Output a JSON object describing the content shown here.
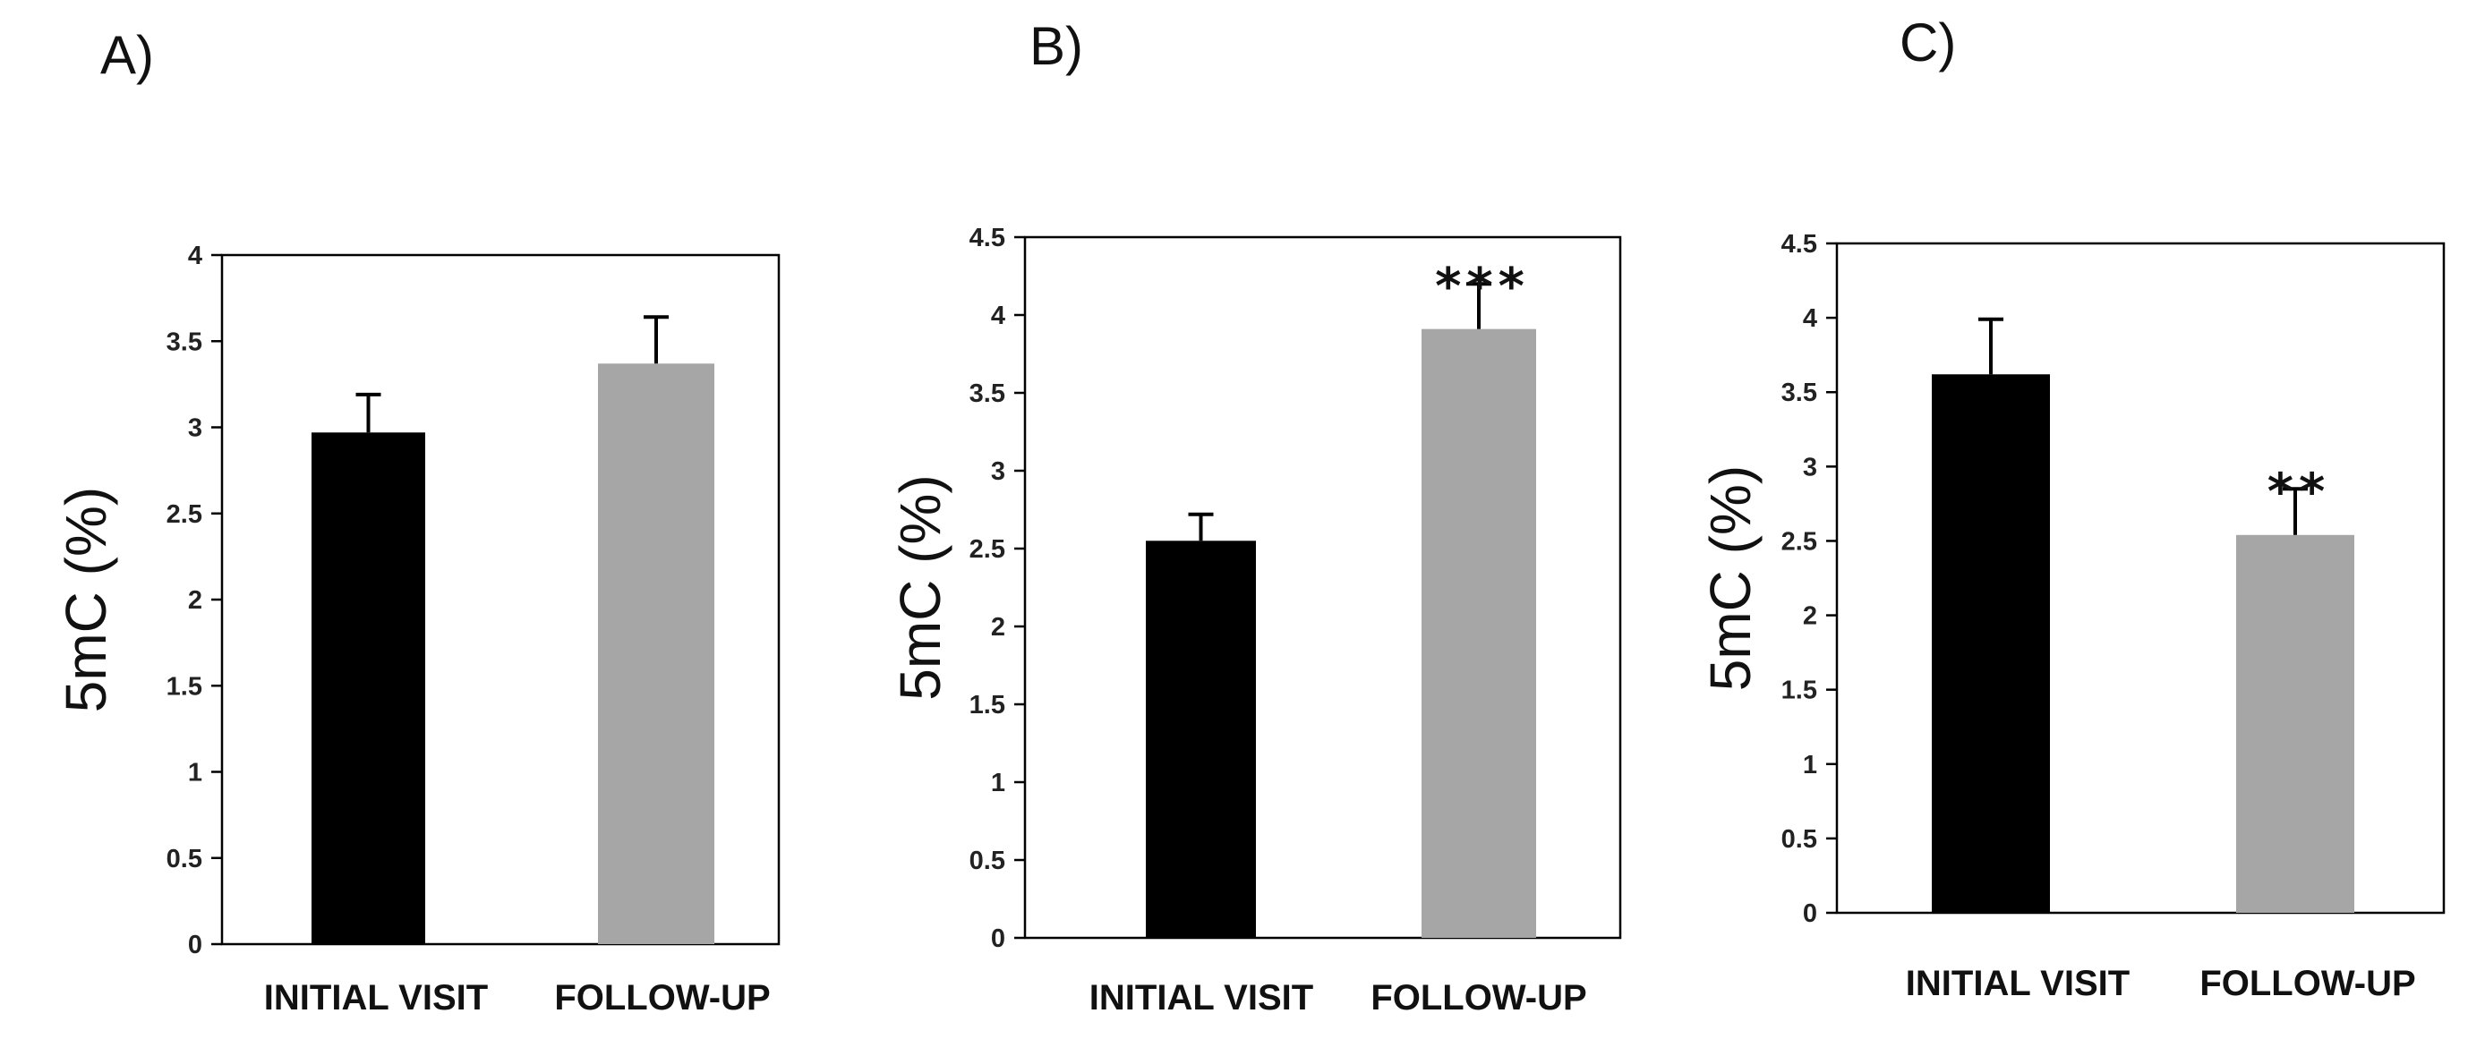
{
  "chart_data": [
    {
      "type": "bar",
      "panel_label": "A)",
      "ylabel": "5mC (%)",
      "categories": [
        "INITIAL VISIT",
        "FOLLOW-UP"
      ],
      "values": [
        2.97,
        3.37
      ],
      "errors": [
        0.22,
        0.27
      ],
      "colors": [
        "#000000",
        "#a6a6a6"
      ],
      "significance": [
        "",
        ""
      ],
      "ylim": [
        0,
        4
      ],
      "ytick_step": 0.5,
      "yticks": [
        "0",
        "0.5",
        "1",
        "1.5",
        "2",
        "2.5",
        "3",
        "3.5",
        "4"
      ]
    },
    {
      "type": "bar",
      "panel_label": "B)",
      "ylabel": "5mC (%)",
      "categories": [
        "INITIAL VISIT",
        "FOLLOW-UP"
      ],
      "values": [
        2.55,
        3.91
      ],
      "errors": [
        0.17,
        0.29
      ],
      "colors": [
        "#000000",
        "#a6a6a6"
      ],
      "significance": [
        "",
        "***"
      ],
      "ylim": [
        0,
        4.5
      ],
      "ytick_step": 0.5,
      "yticks": [
        "0",
        "0.5",
        "1",
        "1.5",
        "2",
        "2.5",
        "3",
        "3.5",
        "4",
        "4.5"
      ]
    },
    {
      "type": "bar",
      "panel_label": "C)",
      "ylabel": "5mC (%)",
      "categories": [
        "INITIAL VISIT",
        "FOLLOW-UP"
      ],
      "values": [
        3.62,
        2.54
      ],
      "errors": [
        0.37,
        0.31
      ],
      "colors": [
        "#000000",
        "#a6a6a6"
      ],
      "significance": [
        "",
        "**"
      ],
      "ylim": [
        0,
        4.5
      ],
      "ytick_step": 0.5,
      "yticks": [
        "0",
        "0.5",
        "1",
        "1.5",
        "2",
        "2.5",
        "3",
        "3.5",
        "4",
        "4.5"
      ]
    }
  ]
}
